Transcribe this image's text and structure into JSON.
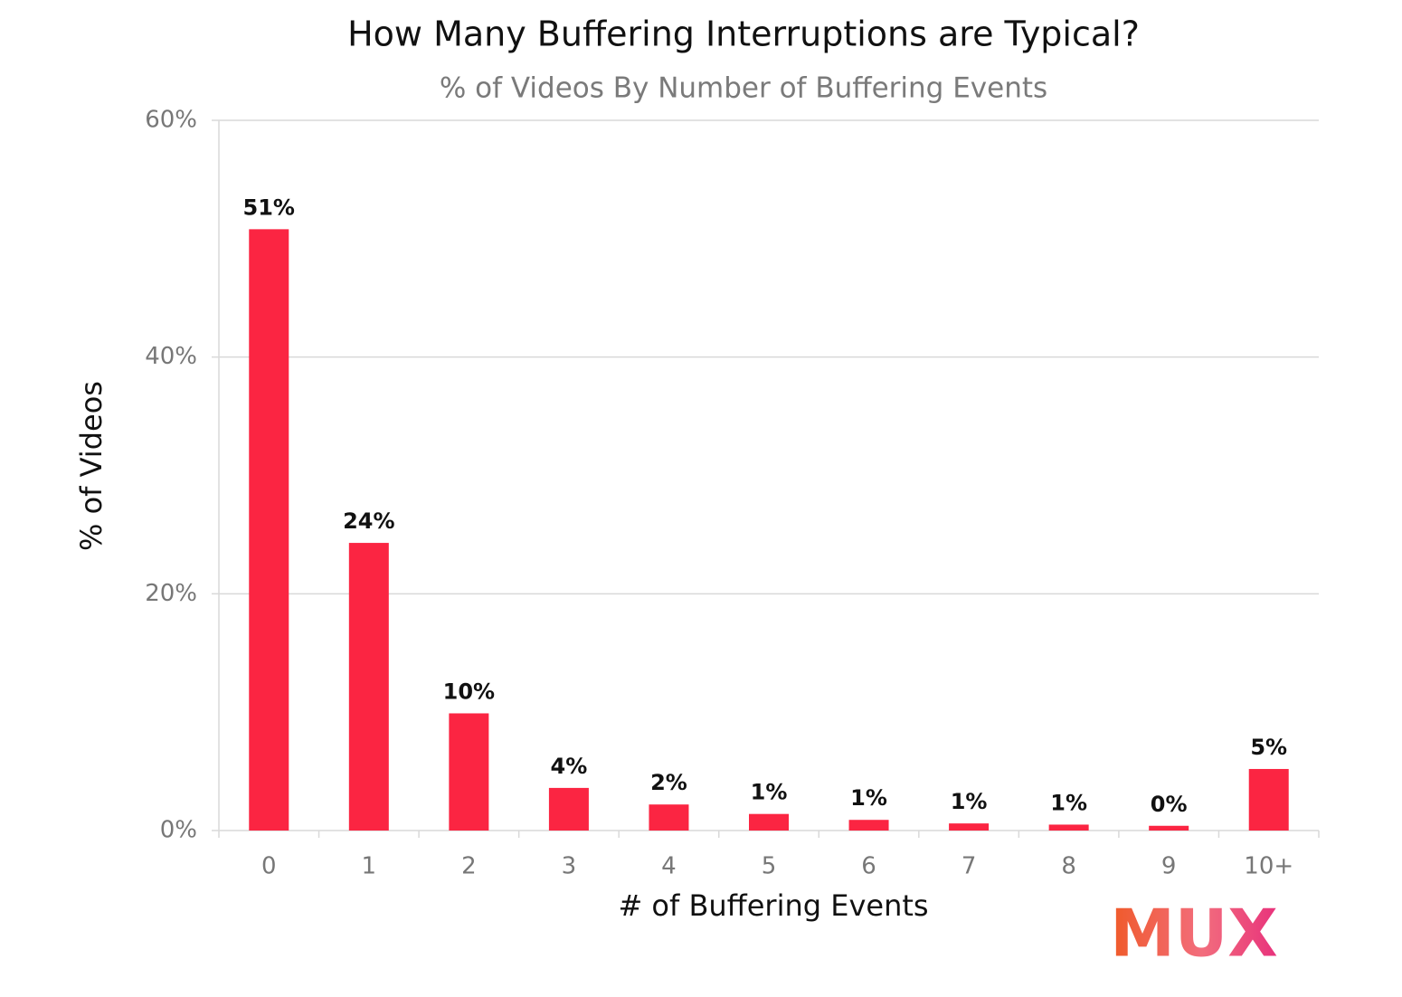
{
  "chart_data": {
    "type": "bar",
    "title": "How Many Buffering Interruptions are Typical?",
    "subtitle": "% of Videos By Number of Buffering Events",
    "x_label": "# of Buffering Events",
    "y_label": "% of Videos",
    "logo": "MUX",
    "categories": [
      "0",
      "1",
      "2",
      "3",
      "4",
      "5",
      "6",
      "7",
      "8",
      "9",
      "10+"
    ],
    "values": [
      50.8,
      24.3,
      9.9,
      3.6,
      2.2,
      1.4,
      0.9,
      0.6,
      0.5,
      0.4,
      5.2
    ],
    "value_labels": [
      "51%",
      "24%",
      "10%",
      "4%",
      "2%",
      "1%",
      "1%",
      "1%",
      "1%",
      "0%",
      "5%"
    ],
    "color": "#fb2542",
    "ylim": [
      0,
      60
    ],
    "yticks": [
      {
        "value": 0,
        "label": "0%"
      },
      {
        "value": 20,
        "label": "20%"
      },
      {
        "value": 40,
        "label": "40%"
      },
      {
        "value": 60,
        "label": "60%"
      }
    ],
    "grid": true
  }
}
